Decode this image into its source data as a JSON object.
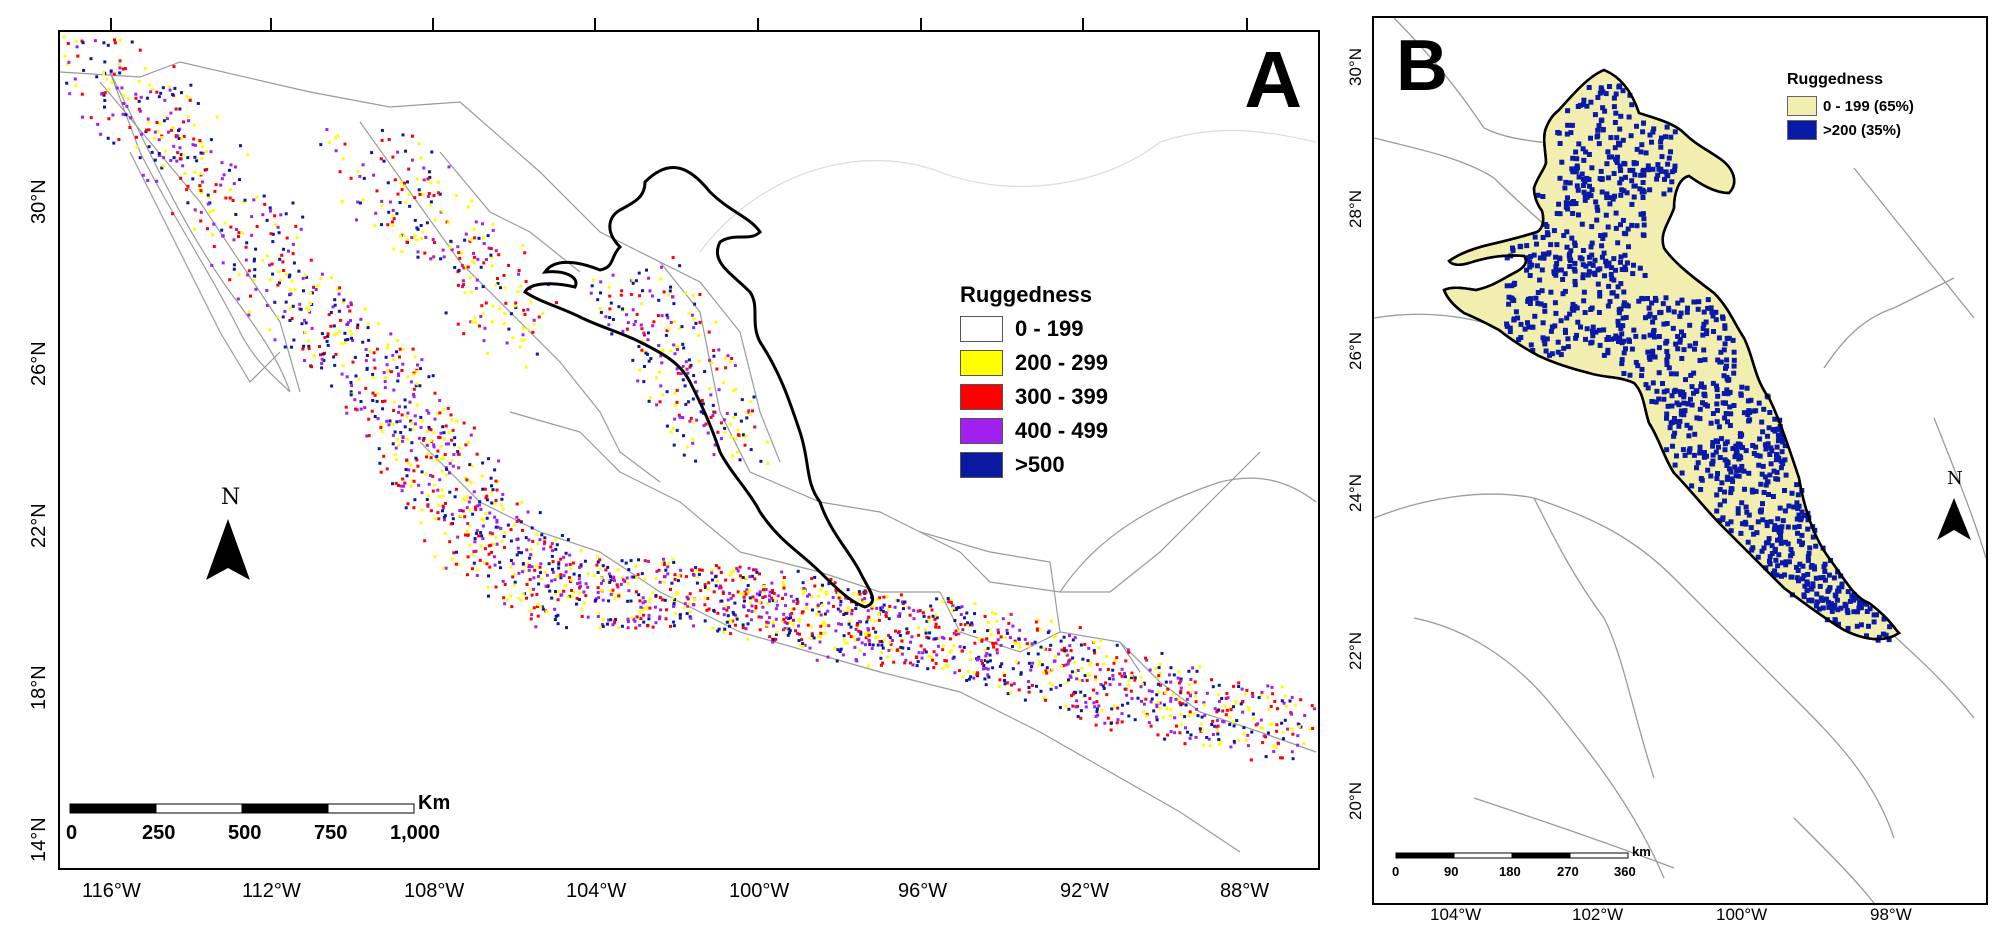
{
  "panel_a": {
    "letter": "A",
    "x_ticks": [
      "116°W",
      "112°W",
      "108°W",
      "104°W",
      "100°W",
      "96°W",
      "92°W",
      "88°W"
    ],
    "y_ticks": [
      "30°N",
      "26°N",
      "22°N",
      "18°N",
      "14°N"
    ],
    "legend": {
      "title": "Ruggedness",
      "items": [
        {
          "label": "0 - 199",
          "color": "#ffffff"
        },
        {
          "label": "200 - 299",
          "color": "#ffff00"
        },
        {
          "label": "300 - 399",
          "color": "#ff0000"
        },
        {
          "label": "400 - 499",
          "color": "#a020f0"
        },
        {
          "label": ">500",
          "color": "#0a1aa0"
        }
      ]
    },
    "north_label": "N",
    "scale": {
      "unit": "Km",
      "labels": [
        "0",
        "250",
        "500",
        "750",
        "1,000"
      ]
    }
  },
  "panel_b": {
    "letter": "B",
    "x_ticks": [
      "104°W",
      "102°W",
      "100°W",
      "98°W"
    ],
    "y_ticks": [
      "30°N",
      "28°N",
      "26°N",
      "24°N",
      "22°N",
      "20°N"
    ],
    "legend": {
      "title": "Ruggedness",
      "items": [
        {
          "label": "0 - 199 (65%)",
          "color": "#f2eeb0"
        },
        {
          "label": ">200 (35%)",
          "color": "#0a1aa8"
        }
      ]
    },
    "north_label": "N",
    "scale": {
      "unit": "km",
      "labels": [
        "0",
        "90",
        "180",
        "270",
        "360"
      ]
    }
  },
  "colors": {
    "border": "#999999",
    "outline": "#000000",
    "land_fill": "#ffffff",
    "region_fill": "#f2eeb0"
  }
}
